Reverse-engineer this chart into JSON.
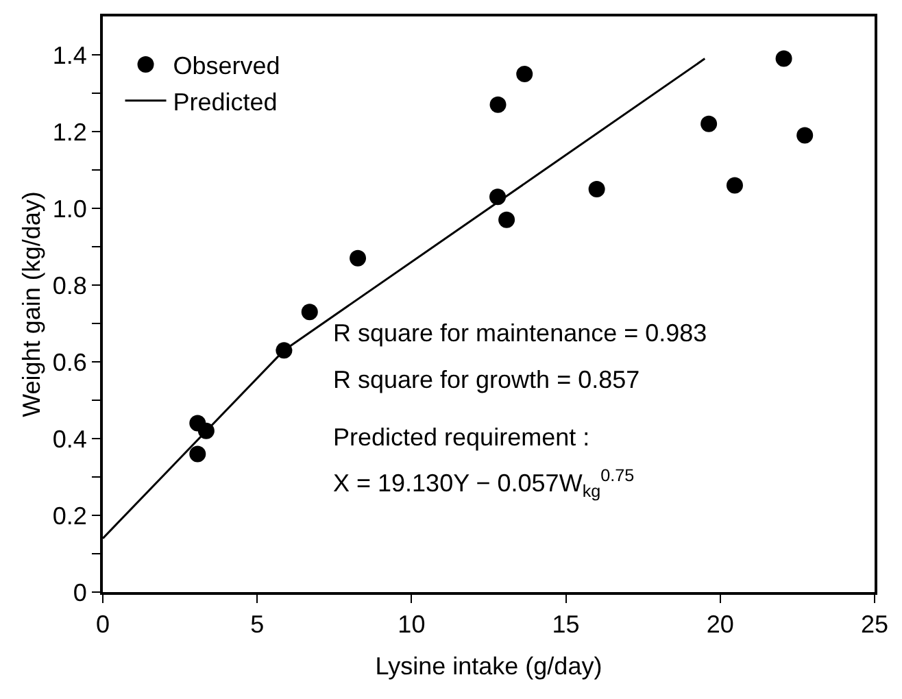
{
  "chart_data": {
    "type": "scatter",
    "xlabel": "Lysine intake (g/day)",
    "ylabel": "Weight gain (kg/day)",
    "series": [
      {
        "name": "Observed",
        "color": "#000000",
        "marker": "circle",
        "x": [
          3.07,
          3.07,
          3.35,
          5.87,
          6.7,
          8.26,
          12.8,
          13.66,
          12.79,
          13.08,
          16.0,
          19.63,
          20.47,
          22.06,
          22.74
        ],
        "values": [
          0.44,
          0.36,
          0.42,
          0.63,
          0.73,
          0.87,
          1.27,
          1.35,
          1.03,
          0.97,
          1.05,
          1.22,
          1.06,
          1.39,
          1.19
        ]
      },
      {
        "name": "Predicted",
        "type": "line",
        "color": "#000000",
        "line_style": "solid",
        "marker": "none",
        "x": [
          0,
          5.87,
          19.5
        ],
        "values": [
          0.14,
          0.63,
          1.39
        ]
      }
    ],
    "xlim": [
      0,
      25
    ],
    "xticks": [
      0,
      5,
      10,
      15,
      20,
      25
    ],
    "ylim": [
      0,
      1.5
    ],
    "yticks": [
      0,
      {
        "value": 0.1,
        "label": null
      },
      0.2,
      {
        "value": 0.3,
        "label": null
      },
      0.4,
      {
        "value": 0.5,
        "label": null
      },
      0.6,
      {
        "value": 0.7,
        "label": null
      },
      0.8,
      {
        "value": 0.9,
        "label": null
      },
      {
        "value": 1,
        "label": "1.0"
      },
      {
        "value": 1.1,
        "label": null
      },
      1.2,
      {
        "value": 1.3,
        "label": null
      },
      1.4
    ],
    "grid": false,
    "legend": "top left",
    "annotations": [
      "R square for maintenance = 0.983",
      "R square for growth = 0.857",
      "Predicted requirement :",
      "X = 19.130Y − 0.057W$_{kg}$$^{0.75}$"
    ]
  }
}
